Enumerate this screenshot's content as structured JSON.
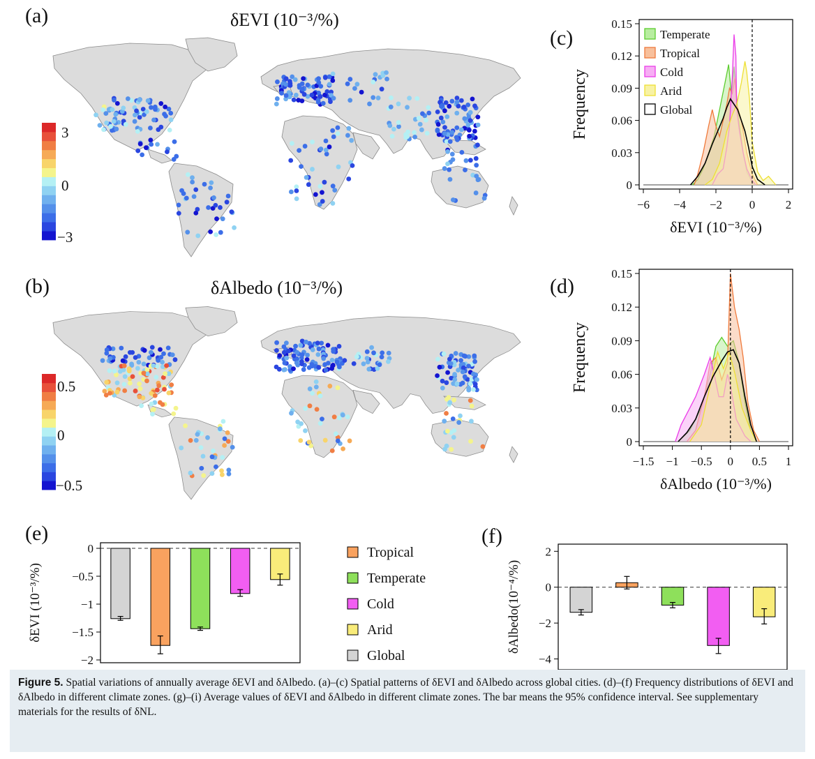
{
  "panels": {
    "a": {
      "letter": "(a)",
      "title": "δEVI (10⁻³/%)",
      "colorbar_ticks": [
        "3",
        "0",
        "−3"
      ]
    },
    "b": {
      "letter": "(b)",
      "title": "δAlbedo (10⁻³/%)",
      "colorbar_ticks": [
        "0.5",
        "0",
        "−0.5"
      ]
    },
    "c": {
      "letter": "(c)"
    },
    "d": {
      "letter": "(d)"
    },
    "e": {
      "letter": "(e)"
    },
    "f": {
      "letter": "(f)"
    }
  },
  "colorbar_colors": [
    "#1414d0",
    "#2a46e0",
    "#3c6ee8",
    "#5490ea",
    "#6fb0ee",
    "#8fd2f2",
    "#b4f0f4",
    "#f4f48c",
    "#f8d46a",
    "#f6aa56",
    "#f07e44",
    "#e8503a",
    "#dc2828"
  ],
  "legend_items": [
    {
      "label": "Tropical",
      "color": "#f9a25f"
    },
    {
      "label": "Temperate",
      "color": "#8ee05b"
    },
    {
      "label": "Cold",
      "color": "#f25ef2"
    },
    {
      "label": "Arid",
      "color": "#f9ec7a"
    },
    {
      "label": "Global",
      "color": "#d4d4d4"
    }
  ],
  "chart_data": [
    {
      "id": "c",
      "type": "area",
      "ylabel": "Frequency",
      "xlabel": "δEVI (10⁻³/%)",
      "xlim": [
        -6,
        2
      ],
      "ylim": [
        0,
        0.15
      ],
      "xticks": [
        "−6",
        "−4",
        "−2",
        "0",
        "2"
      ],
      "yticks": [
        "0",
        "0.03",
        "0.06",
        "0.09",
        "0.12",
        "0.15"
      ],
      "reference_line_x": 0,
      "legend_position": "top-left",
      "series": [
        {
          "name": "Temperate",
          "color": "#5ccc2e",
          "fill": "#b8eda0",
          "points": [
            [
              -3.3,
              0
            ],
            [
              -3.0,
              0.005
            ],
            [
              -2.7,
              0.015
            ],
            [
              -2.4,
              0.03
            ],
            [
              -2.1,
              0.045
            ],
            [
              -1.8,
              0.07
            ],
            [
              -1.5,
              0.095
            ],
            [
              -1.3,
              0.112
            ],
            [
              -1.15,
              0.085
            ],
            [
              -1.0,
              0.11
            ],
            [
              -0.8,
              0.07
            ],
            [
              -0.5,
              0.03
            ],
            [
              -0.3,
              0.012
            ],
            [
              0,
              0.002
            ],
            [
              0.2,
              0
            ]
          ]
        },
        {
          "name": "Tropical",
          "color": "#ef7a3c",
          "fill": "#f8c09c",
          "points": [
            [
              -3.2,
              0
            ],
            [
              -3.0,
              0.01
            ],
            [
              -2.7,
              0.03
            ],
            [
              -2.4,
              0.055
            ],
            [
              -2.2,
              0.07
            ],
            [
              -2.0,
              0.055
            ],
            [
              -1.8,
              0.045
            ],
            [
              -1.6,
              0.06
            ],
            [
              -1.4,
              0.075
            ],
            [
              -1.25,
              0.09
            ],
            [
              -1.1,
              0.085
            ],
            [
              -0.95,
              0.1
            ],
            [
              -0.85,
              0.075
            ],
            [
              -0.6,
              0.06
            ],
            [
              -0.3,
              0.03
            ],
            [
              0,
              0.01
            ],
            [
              0.3,
              0
            ]
          ]
        },
        {
          "name": "Cold",
          "color": "#ea3ce8",
          "fill": "#f7aef4",
          "points": [
            [
              -2.2,
              0
            ],
            [
              -1.9,
              0.01
            ],
            [
              -1.6,
              0.015
            ],
            [
              -1.4,
              0.035
            ],
            [
              -1.25,
              0.055
            ],
            [
              -1.1,
              0.1
            ],
            [
              -1.0,
              0.14
            ],
            [
              -0.9,
              0.12
            ],
            [
              -0.85,
              0.07
            ],
            [
              -0.7,
              0.05
            ],
            [
              -0.5,
              0.03
            ],
            [
              -0.3,
              0.015
            ],
            [
              0,
              0.004
            ],
            [
              0.2,
              0
            ]
          ]
        },
        {
          "name": "Arid",
          "color": "#eee034",
          "fill": "#f8f2a4",
          "points": [
            [
              -2.6,
              0
            ],
            [
              -2.2,
              0.005
            ],
            [
              -1.8,
              0.02
            ],
            [
              -1.4,
              0.05
            ],
            [
              -1.1,
              0.065
            ],
            [
              -0.85,
              0.075
            ],
            [
              -0.6,
              0.095
            ],
            [
              -0.4,
              0.115
            ],
            [
              -0.3,
              0.105
            ],
            [
              -0.15,
              0.08
            ],
            [
              0,
              0.04
            ],
            [
              0.3,
              0.012
            ],
            [
              0.6,
              0.004
            ],
            [
              0.9,
              0.008
            ],
            [
              1.1,
              0.004
            ],
            [
              1.3,
              0
            ]
          ]
        },
        {
          "name": "Global",
          "color": "#000000",
          "fill": "none",
          "points": [
            [
              -3.4,
              0
            ],
            [
              -3.0,
              0.008
            ],
            [
              -2.6,
              0.02
            ],
            [
              -2.2,
              0.038
            ],
            [
              -1.9,
              0.05
            ],
            [
              -1.6,
              0.062
            ],
            [
              -1.4,
              0.072
            ],
            [
              -1.2,
              0.08
            ],
            [
              -1.0,
              0.075
            ],
            [
              -0.8,
              0.07
            ],
            [
              -0.6,
              0.06
            ],
            [
              -0.4,
              0.05
            ],
            [
              -0.2,
              0.035
            ],
            [
              0,
              0.017
            ],
            [
              0.3,
              0.005
            ],
            [
              0.7,
              0
            ]
          ]
        }
      ]
    },
    {
      "id": "d",
      "type": "area",
      "ylabel": "Frequency",
      "xlabel": "δAlbedo (10⁻³/%)",
      "xlim": [
        -1.5,
        1
      ],
      "ylim": [
        0,
        0.15
      ],
      "xticks": [
        "−1.5",
        "−1",
        "−0.5",
        "0",
        "0.5",
        "1"
      ],
      "yticks": [
        "0",
        "0.03",
        "0.06",
        "0.09",
        "0.12",
        "0.15"
      ],
      "reference_line_x": 0,
      "series": [
        {
          "name": "Temperate",
          "color": "#5ccc2e",
          "fill": "#b8eda0",
          "points": [
            [
              -0.9,
              0
            ],
            [
              -0.7,
              0.01
            ],
            [
              -0.5,
              0.03
            ],
            [
              -0.35,
              0.06
            ],
            [
              -0.25,
              0.085
            ],
            [
              -0.15,
              0.093
            ],
            [
              -0.05,
              0.085
            ],
            [
              0.05,
              0.09
            ],
            [
              0.15,
              0.07
            ],
            [
              0.25,
              0.035
            ],
            [
              0.35,
              0.01
            ],
            [
              0.45,
              0
            ]
          ]
        },
        {
          "name": "Tropical",
          "color": "#ef7a3c",
          "fill": "#f8c09c",
          "points": [
            [
              -0.75,
              0
            ],
            [
              -0.6,
              0.01
            ],
            [
              -0.45,
              0.04
            ],
            [
              -0.35,
              0.07
            ],
            [
              -0.25,
              0.075
            ],
            [
              -0.15,
              0.055
            ],
            [
              -0.05,
              0.07
            ],
            [
              0,
              0.15
            ],
            [
              0.07,
              0.12
            ],
            [
              0.15,
              0.1
            ],
            [
              0.22,
              0.075
            ],
            [
              0.3,
              0.035
            ],
            [
              0.4,
              0.01
            ],
            [
              0.5,
              0
            ]
          ]
        },
        {
          "name": "Cold",
          "color": "#ea3ce8",
          "fill": "#f7aef4",
          "points": [
            [
              -0.95,
              0
            ],
            [
              -0.85,
              0.015
            ],
            [
              -0.7,
              0.03
            ],
            [
              -0.6,
              0.04
            ],
            [
              -0.45,
              0.06
            ],
            [
              -0.35,
              0.075
            ],
            [
              -0.28,
              0.06
            ],
            [
              -0.2,
              0.04
            ],
            [
              -0.12,
              0.04
            ],
            [
              -0.05,
              0.06
            ],
            [
              0,
              0.05
            ],
            [
              0.1,
              0.02
            ],
            [
              0.25,
              0.005
            ],
            [
              0.35,
              0
            ]
          ]
        },
        {
          "name": "Arid",
          "color": "#eee034",
          "fill": "#f8f2a4",
          "points": [
            [
              -0.7,
              0
            ],
            [
              -0.5,
              0.015
            ],
            [
              -0.35,
              0.05
            ],
            [
              -0.22,
              0.08
            ],
            [
              -0.12,
              0.065
            ],
            [
              -0.02,
              0.08
            ],
            [
              0.08,
              0.06
            ],
            [
              0.2,
              0.03
            ],
            [
              0.35,
              0.01
            ],
            [
              0.45,
              0
            ]
          ]
        },
        {
          "name": "Global",
          "color": "#000000",
          "fill": "none",
          "points": [
            [
              -0.9,
              0
            ],
            [
              -0.75,
              0.008
            ],
            [
              -0.6,
              0.02
            ],
            [
              -0.45,
              0.04
            ],
            [
              -0.3,
              0.058
            ],
            [
              -0.15,
              0.072
            ],
            [
              -0.05,
              0.08
            ],
            [
              0.05,
              0.082
            ],
            [
              0.15,
              0.07
            ],
            [
              0.25,
              0.04
            ],
            [
              0.35,
              0.015
            ],
            [
              0.45,
              0
            ]
          ]
        }
      ]
    },
    {
      "id": "e",
      "type": "bar",
      "ylabel": "δEVI (10⁻³/%)",
      "ylim": [
        -2.05,
        0.1
      ],
      "yticks": [
        "0",
        "−0.5",
        "−1",
        "−1.5",
        "−2"
      ],
      "categories": [
        "Global",
        "Tropical",
        "Temperate",
        "Cold",
        "Arid"
      ],
      "values": [
        -1.26,
        -1.74,
        -1.44,
        -0.81,
        -0.56
      ],
      "error_low": [
        -1.29,
        -1.89,
        -1.47,
        -0.86,
        -0.66
      ],
      "error_high": [
        -1.22,
        -1.57,
        -1.41,
        -0.74,
        -0.46
      ]
    },
    {
      "id": "f",
      "type": "bar",
      "ylabel": "δAlbedo(10⁻⁴/%)",
      "ylim": [
        -4.6,
        2.4
      ],
      "yticks": [
        "2",
        "0",
        "−2",
        "−4"
      ],
      "categories": [
        "Global",
        "Tropical",
        "Temperate",
        "Cold",
        "Arid"
      ],
      "values": [
        -1.4,
        0.25,
        -1.0,
        -3.25,
        -1.65
      ],
      "error_low": [
        -1.55,
        -0.1,
        -1.15,
        -3.7,
        -2.05
      ],
      "error_high": [
        -1.25,
        0.6,
        -0.85,
        -2.85,
        -1.2
      ]
    }
  ],
  "caption": {
    "label": "Figure 5.",
    "text": "Spatial variations of annually average δEVI and δAlbedo. (a)–(c) Spatial patterns of δEVI and δAlbedo across global cities. (d)–(f) Frequency distributions of δEVI and δAlbedo in different climate zones. (g)–(i) Average values of δEVI and δAlbedo in different climate zones. The bar means the 95% confidence interval. See supplementary materials for the results of δNL."
  }
}
